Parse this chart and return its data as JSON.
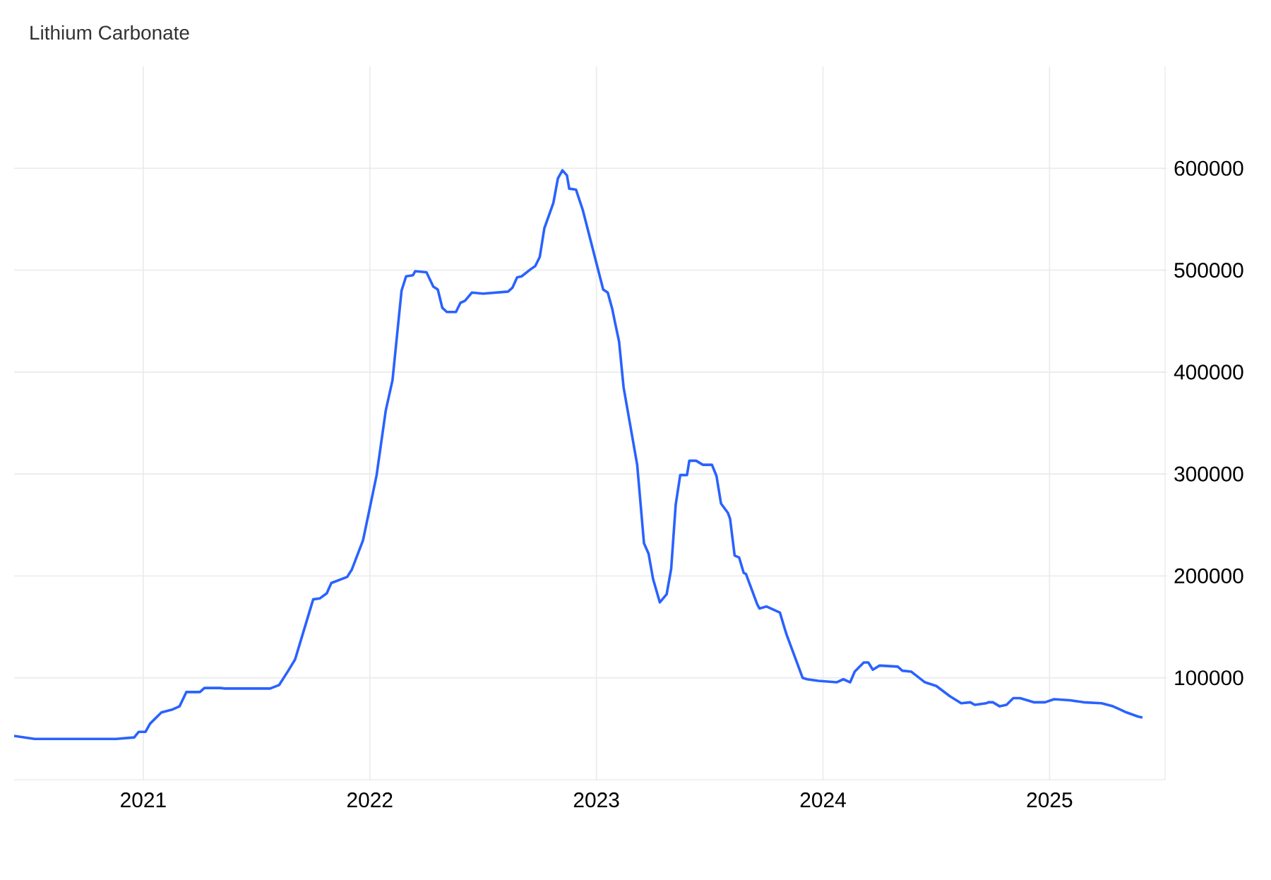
{
  "chart_data": {
    "type": "line",
    "title": "Lithium Carbonate",
    "x": [
      2020.43,
      2020.52,
      2020.88,
      2020.96,
      2020.98,
      2021.01,
      2021.03,
      2021.08,
      2021.13,
      2021.16,
      2021.19,
      2021.25,
      2021.27,
      2021.34,
      2021.36,
      2021.56,
      2021.6,
      2021.64,
      2021.67,
      2021.75,
      2021.78,
      2021.81,
      2021.83,
      2021.9,
      2021.92,
      2021.97,
      2022.0,
      2022.03,
      2022.07,
      2022.1,
      2022.14,
      2022.16,
      2022.19,
      2022.2,
      2022.25,
      2022.28,
      2022.3,
      2022.32,
      2022.34,
      2022.38,
      2022.4,
      2022.42,
      2022.45,
      2022.5,
      2022.61,
      2022.63,
      2022.65,
      2022.67,
      2022.71,
      2022.73,
      2022.75,
      2022.77,
      2022.81,
      2022.83,
      2022.85,
      2022.87,
      2022.88,
      2022.91,
      2022.94,
      2023.0,
      2023.03,
      2023.05,
      2023.07,
      2023.08,
      2023.1,
      2023.12,
      2023.18,
      2023.21,
      2023.23,
      2023.25,
      2023.28,
      2023.31,
      2023.33,
      2023.35,
      2023.37,
      2023.4,
      2023.41,
      2023.44,
      2023.47,
      2023.51,
      2023.53,
      2023.55,
      2023.58,
      2023.59,
      2023.61,
      2023.63,
      2023.65,
      2023.66,
      2023.71,
      2023.72,
      2023.75,
      2023.78,
      2023.81,
      2023.83,
      2023.84,
      2023.91,
      2023.93,
      2023.98,
      2024.06,
      2024.09,
      2024.12,
      2024.14,
      2024.18,
      2024.2,
      2024.22,
      2024.25,
      2024.33,
      2024.35,
      2024.39,
      2024.45,
      2024.5,
      2024.53,
      2024.56,
      2024.61,
      2024.65,
      2024.67,
      2024.72,
      2024.73,
      2024.75,
      2024.78,
      2024.81,
      2024.84,
      2024.87,
      2024.93,
      2024.98,
      2025.02,
      2025.09,
      2025.15,
      2025.23,
      2025.28,
      2025.31,
      2025.34,
      2025.39,
      2025.41
    ],
    "series": [
      {
        "color": "#2962ff",
        "values": [
          43000,
          40000,
          40000,
          41500,
          47000,
          47000,
          55000,
          66000,
          69000,
          72000,
          86000,
          86000,
          90000,
          90000,
          89500,
          89500,
          93000,
          107000,
          118000,
          177000,
          178000,
          183000,
          193000,
          199000,
          206000,
          235000,
          267000,
          299000,
          362000,
          392000,
          480000,
          494000,
          495000,
          499000,
          498000,
          484000,
          481000,
          463000,
          459000,
          459000,
          468000,
          470000,
          478000,
          477000,
          479000,
          483000,
          493000,
          494000,
          501000,
          504000,
          513000,
          541000,
          566000,
          590000,
          598000,
          593000,
          580000,
          579000,
          559000,
          507000,
          481000,
          478000,
          462000,
          451000,
          430000,
          385000,
          309000,
          232000,
          222000,
          197000,
          174000,
          182000,
          207000,
          270000,
          299000,
          299000,
          313000,
          313000,
          309000,
          309000,
          298000,
          271000,
          262000,
          256000,
          220000,
          218000,
          203000,
          202000,
          172000,
          168000,
          170000,
          167000,
          164000,
          149000,
          142000,
          100000,
          98600,
          97000,
          95600,
          98600,
          95600,
          106000,
          115000,
          115000,
          108000,
          112000,
          111000,
          107000,
          106000,
          95600,
          92000,
          87000,
          82000,
          75000,
          76000,
          73500,
          75000,
          76000,
          76000,
          72000,
          73500,
          80000,
          80000,
          76000,
          76000,
          79000,
          78000,
          76000,
          75000,
          72000,
          69000,
          66000,
          62000,
          61000
        ]
      }
    ],
    "xlim": [
      2020.43,
      2025.51
    ],
    "ylim": [
      0,
      700000
    ],
    "xticks": [
      2021,
      2022,
      2023,
      2024,
      2025
    ],
    "yticks": [
      100000,
      200000,
      300000,
      400000,
      500000,
      600000
    ],
    "grid": true,
    "line_style": "solid",
    "marker": "none"
  }
}
